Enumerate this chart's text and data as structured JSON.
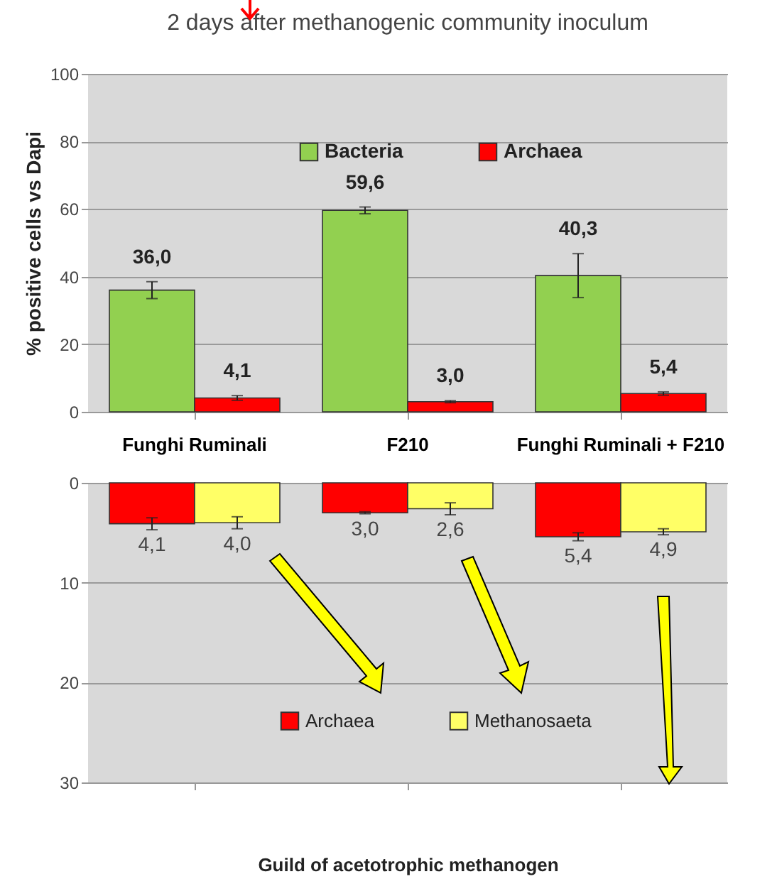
{
  "chart_data": [
    {
      "type": "bar",
      "title": "2 days after methanogenic community inoculum",
      "ylabel": "% positive cells vs Dapi",
      "categories": [
        "Funghi Ruminali",
        "F210",
        "Funghi Ruminali + F210"
      ],
      "series": [
        {
          "name": "Bacteria",
          "color": "#92d050",
          "values": [
            36.0,
            59.6,
            40.3
          ],
          "errors": [
            2.5,
            1,
            6.5
          ],
          "value_labels": [
            "36,0",
            "59,6",
            "40,3"
          ]
        },
        {
          "name": "Archaea",
          "color": "#ff0000",
          "values": [
            4.1,
            3.0,
            5.4
          ],
          "errors": [
            0.7,
            0.3,
            0.5
          ],
          "value_labels": [
            "4,1",
            "3,0",
            "5,4"
          ]
        }
      ],
      "ylim": [
        0,
        100
      ],
      "yticks": [
        0,
        20,
        40,
        60,
        80,
        100
      ],
      "grid": "y",
      "legend": "top"
    },
    {
      "type": "bar",
      "xlabel": "Guild of acetotrophic methanogen",
      "categories": [
        null,
        null,
        null
      ],
      "series": [
        {
          "name": "Archaea",
          "color": "#ff0000",
          "values": [
            4.1,
            3.0,
            5.4
          ],
          "errors": [
            0.6,
            0.1,
            0.4
          ],
          "value_labels": [
            "4,1",
            "3,0",
            "5,4"
          ]
        },
        {
          "name": "Methanosaeta",
          "color": "#ffff66",
          "values": [
            4.0,
            2.6,
            4.9
          ],
          "errors": [
            0.6,
            0.6,
            0.3
          ],
          "value_labels": [
            "4,0",
            "2,6",
            "4,9"
          ]
        }
      ],
      "ylim": [
        30,
        0
      ],
      "yticks": [
        0,
        10,
        20,
        30
      ],
      "grid": "y",
      "legend": "bottom"
    }
  ]
}
